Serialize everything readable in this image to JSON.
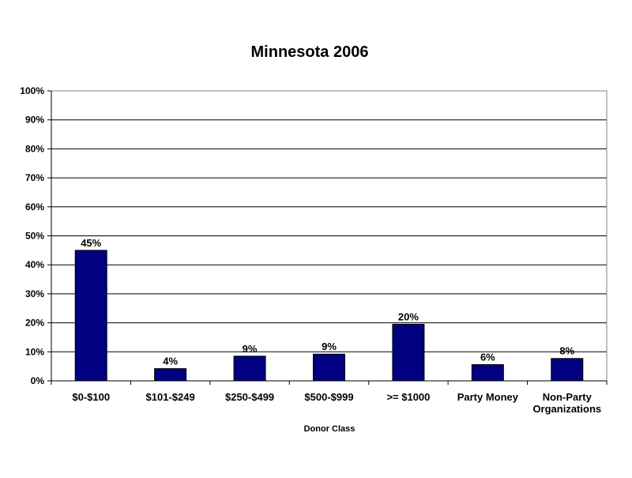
{
  "chart_data": {
    "type": "bar",
    "title": "Minnesota 2006",
    "xlabel": "Donor Class",
    "ylabel": "",
    "ylim": [
      0,
      100
    ],
    "y_ticks": [
      "0%",
      "10%",
      "20%",
      "30%",
      "40%",
      "50%",
      "60%",
      "70%",
      "80%",
      "90%",
      "100%"
    ],
    "categories": [
      [
        "$0-$100"
      ],
      [
        "$101-$249"
      ],
      [
        "$250-$499"
      ],
      [
        "$500-$999"
      ],
      [
        ">= $1000"
      ],
      [
        "Party Money"
      ],
      [
        "Non-Party",
        "Organizations"
      ]
    ],
    "values": [
      45,
      4,
      9,
      9,
      20,
      6,
      8
    ],
    "bar_values": [
      45,
      4.2,
      8.5,
      9.2,
      19.5,
      5.6,
      7.7
    ],
    "data_labels": [
      "45%",
      "4%",
      "9%",
      "9%",
      "20%",
      "6%",
      "8%"
    ],
    "grid": true,
    "legend": "none",
    "colors": {
      "bar": "#000080",
      "grid": "#000000",
      "background": "#ffffff"
    }
  }
}
